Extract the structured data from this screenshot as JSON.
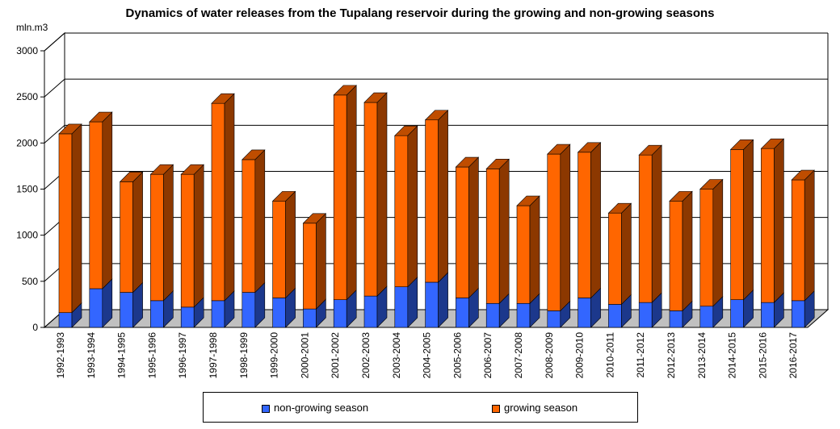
{
  "chart_data": {
    "type": "bar",
    "stacked": true,
    "three_d": true,
    "title": "Dynamics of water releases from the Tupalang reservoir during the growing and non-growing seasons",
    "ylabel": "mln.m3",
    "ylim": [
      0,
      3000
    ],
    "yticks": [
      "0",
      "500",
      "1000",
      "1500",
      "2000",
      "2500",
      "3000"
    ],
    "grid": true,
    "legend_position": "bottom",
    "categories": [
      "1992-1993",
      "1993-1994",
      "1994-1995",
      "1995-1996",
      "1996-1997",
      "1997-1998",
      "1998-1999",
      "1999-2000",
      "2000-2001",
      "2001-2002",
      "2002-2003",
      "2003-2004",
      "2004-2005",
      "2005-2006",
      "2006-2007",
      "2007-2008",
      "2008-2009",
      "2009-2010",
      "2010-2011",
      "2011-2012",
      "2012-2013",
      "2013-2014",
      "2014-2015",
      "2015-2016",
      "2016-2017"
    ],
    "series": [
      {
        "name": "non-growing season",
        "color": "#3366ff",
        "values": [
          160,
          420,
          380,
          290,
          220,
          290,
          380,
          320,
          200,
          300,
          340,
          440,
          490,
          320,
          260,
          260,
          180,
          320,
          250,
          270,
          180,
          230,
          300,
          270,
          290
        ]
      },
      {
        "name": "growing season",
        "color": "#ff6600",
        "values": [
          1940,
          1810,
          1200,
          1370,
          1440,
          2140,
          1440,
          1050,
          930,
          2220,
          2100,
          1640,
          1760,
          1420,
          1460,
          1060,
          1700,
          1580,
          990,
          1600,
          1190,
          1270,
          1630,
          1670,
          1310
        ]
      }
    ]
  }
}
